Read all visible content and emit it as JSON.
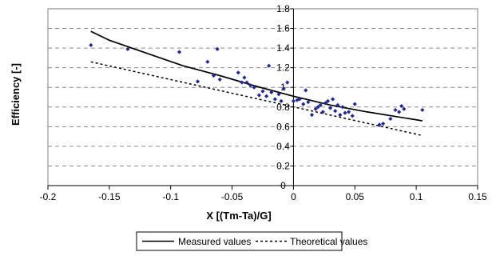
{
  "chart_data": {
    "type": "scatter",
    "title": "",
    "xlabel": "X [(Tm-Ta)/G]",
    "ylabel": "Efficiency [-]",
    "xlim": [
      -0.2,
      0.15
    ],
    "ylim": [
      0,
      1.8
    ],
    "x_ticks": [
      -0.2,
      -0.15,
      -0.1,
      -0.05,
      0,
      0.05,
      0.1,
      0.15
    ],
    "x_tick_labels": [
      "-0.2",
      "-0.15",
      "-0.1",
      "-0.05",
      "0",
      "0.05",
      "0.1",
      "0.15"
    ],
    "y_ticks": [
      0,
      0.2,
      0.4,
      0.6,
      0.8,
      1,
      1.2,
      1.4,
      1.6,
      1.8
    ],
    "y_tick_labels": [
      "0",
      "0.2",
      "0.4",
      "0.6",
      "0.8",
      "1",
      "1.2",
      "1.4",
      "1.6",
      "1.8"
    ],
    "grid": "horizontal dashed",
    "legend_position": "bottom",
    "series": [
      {
        "name": "Measured values",
        "style": "solid",
        "color": "#000000",
        "x": [
          -0.165,
          -0.15,
          -0.12,
          -0.09,
          -0.06,
          -0.03,
          0,
          0.03,
          0.06,
          0.09,
          0.105
        ],
        "y": [
          1.57,
          1.48,
          1.35,
          1.22,
          1.12,
          1.01,
          0.91,
          0.82,
          0.75,
          0.69,
          0.66
        ]
      },
      {
        "name": "Theoretical values",
        "style": "dashed",
        "color": "#000000",
        "x": [
          -0.165,
          0.105
        ],
        "y": [
          1.26,
          0.51
        ]
      }
    ],
    "points": {
      "color": "#1f2a8c",
      "x": [
        -0.165,
        -0.135,
        -0.093,
        -0.078,
        -0.07,
        -0.065,
        -0.062,
        -0.06,
        -0.045,
        -0.042,
        -0.04,
        -0.038,
        -0.035,
        -0.032,
        -0.028,
        -0.025,
        -0.022,
        -0.02,
        -0.018,
        -0.015,
        -0.012,
        -0.01,
        -0.008,
        -0.005,
        0,
        0.003,
        0.005,
        0.008,
        0.01,
        0.012,
        0.015,
        0.018,
        0.02,
        0.022,
        0.024,
        0.026,
        0.028,
        0.03,
        0.032,
        0.034,
        0.036,
        0.038,
        0.04,
        0.042,
        0.045,
        0.048,
        0.05,
        0.07,
        0.073,
        0.079,
        0.083,
        0.086,
        0.088,
        0.09,
        0.105
      ],
      "y": [
        1.43,
        1.39,
        1.36,
        1.06,
        1.26,
        1.12,
        1.39,
        1.08,
        1.15,
        1.05,
        1.1,
        1.05,
        1.02,
        1.0,
        0.92,
        0.96,
        0.91,
        1.22,
        0.95,
        0.88,
        0.93,
        0.86,
        0.99,
        1.05,
        0.86,
        0.87,
        0.88,
        0.83,
        0.97,
        0.85,
        0.72,
        0.78,
        0.8,
        0.82,
        0.75,
        0.84,
        0.86,
        0.79,
        0.88,
        0.76,
        0.82,
        0.72,
        0.8,
        0.74,
        0.75,
        0.71,
        0.83,
        0.62,
        0.63,
        0.68,
        0.77,
        0.75,
        0.81,
        0.78,
        0.77
      ]
    }
  }
}
